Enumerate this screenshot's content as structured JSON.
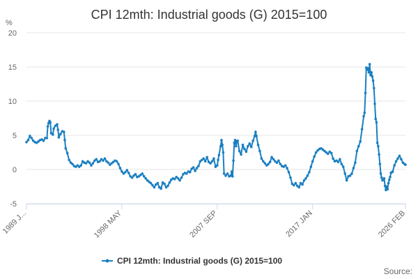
{
  "chart_data": {
    "type": "line",
    "title": "CPI 12mth: Industrial goods (G) 2015=100",
    "ylabel": "%",
    "ylim": [
      -5,
      20
    ],
    "yticks": [
      -5,
      0,
      5,
      10,
      15,
      20
    ],
    "xlim": [
      "1989-01",
      "2026-02"
    ],
    "xtick_labels": [
      "1989 J...",
      "1998 MAY",
      "2007 SEP",
      "2017 JAN",
      "2026 FEB"
    ],
    "xtick_dates": [
      "1989-01",
      "1998-05",
      "2007-09",
      "2017-01",
      "2026-02"
    ],
    "grid": "horizontal",
    "legend_position": "bottom-center",
    "source_label": "Source:",
    "series": [
      {
        "name": "CPI 12mth: Industrial goods (G) 2015=100",
        "color": "#1a7fc1",
        "points": [
          [
            "1989-01",
            4.0
          ],
          [
            "1989-03",
            4.3
          ],
          [
            "1989-05",
            4.9
          ],
          [
            "1989-07",
            4.6
          ],
          [
            "1989-09",
            4.2
          ],
          [
            "1989-11",
            4.0
          ],
          [
            "1990-01",
            3.9
          ],
          [
            "1990-03",
            4.1
          ],
          [
            "1990-05",
            4.3
          ],
          [
            "1990-07",
            4.4
          ],
          [
            "1990-09",
            4.2
          ],
          [
            "1990-11",
            4.6
          ],
          [
            "1991-01",
            4.6
          ],
          [
            "1991-02",
            6.3
          ],
          [
            "1991-03",
            6.8
          ],
          [
            "1991-04",
            7.1
          ],
          [
            "1991-05",
            6.9
          ],
          [
            "1991-06",
            5.3
          ],
          [
            "1991-08",
            5.1
          ],
          [
            "1991-09",
            6.0
          ],
          [
            "1991-11",
            6.4
          ],
          [
            "1992-01",
            6.6
          ],
          [
            "1992-02",
            5.8
          ],
          [
            "1992-03",
            4.7
          ],
          [
            "1992-05",
            5.2
          ],
          [
            "1992-07",
            5.6
          ],
          [
            "1992-09",
            5.5
          ],
          [
            "1992-10",
            4.3
          ],
          [
            "1992-11",
            3.1
          ],
          [
            "1993-01",
            2.4
          ],
          [
            "1993-03",
            1.4
          ],
          [
            "1993-05",
            1.0
          ],
          [
            "1993-07",
            0.8
          ],
          [
            "1993-09",
            0.5
          ],
          [
            "1993-11",
            0.4
          ],
          [
            "1994-01",
            0.6
          ],
          [
            "1994-03",
            0.4
          ],
          [
            "1994-05",
            0.6
          ],
          [
            "1994-07",
            1.2
          ],
          [
            "1994-09",
            1.0
          ],
          [
            "1994-11",
            0.9
          ],
          [
            "1995-01",
            1.2
          ],
          [
            "1995-03",
            1.0
          ],
          [
            "1995-05",
            0.6
          ],
          [
            "1995-07",
            0.9
          ],
          [
            "1995-09",
            1.3
          ],
          [
            "1995-11",
            1.5
          ],
          [
            "1996-01",
            1.1
          ],
          [
            "1996-03",
            1.2
          ],
          [
            "1996-05",
            1.5
          ],
          [
            "1996-07",
            1.3
          ],
          [
            "1996-09",
            1.6
          ],
          [
            "1996-11",
            1.2
          ],
          [
            "1997-01",
            1.0
          ],
          [
            "1997-03",
            0.7
          ],
          [
            "1997-05",
            0.9
          ],
          [
            "1997-07",
            1.1
          ],
          [
            "1997-09",
            1.3
          ],
          [
            "1997-11",
            1.2
          ],
          [
            "1998-01",
            0.8
          ],
          [
            "1998-03",
            0.2
          ],
          [
            "1998-05",
            -0.3
          ],
          [
            "1998-07",
            -0.6
          ],
          [
            "1998-09",
            -0.4
          ],
          [
            "1998-11",
            -0.1
          ],
          [
            "1999-01",
            -0.5
          ],
          [
            "1999-03",
            -1.0
          ],
          [
            "1999-05",
            -1.2
          ],
          [
            "1999-07",
            -0.9
          ],
          [
            "1999-09",
            -0.7
          ],
          [
            "1999-11",
            -1.1
          ],
          [
            "2000-01",
            -1.0
          ],
          [
            "2000-03",
            -0.8
          ],
          [
            "2000-05",
            -0.6
          ],
          [
            "2000-07",
            -1.0
          ],
          [
            "2000-09",
            -1.3
          ],
          [
            "2000-11",
            -1.6
          ],
          [
            "2001-01",
            -1.8
          ],
          [
            "2001-03",
            -2.0
          ],
          [
            "2001-05",
            -2.3
          ],
          [
            "2001-07",
            -2.6
          ],
          [
            "2001-09",
            -2.2
          ],
          [
            "2001-11",
            -2.0
          ],
          [
            "2002-01",
            -2.6
          ],
          [
            "2002-03",
            -2.8
          ],
          [
            "2002-05",
            -1.9
          ],
          [
            "2002-07",
            -2.1
          ],
          [
            "2002-09",
            -2.6
          ],
          [
            "2002-11",
            -2.4
          ],
          [
            "2003-01",
            -1.9
          ],
          [
            "2003-03",
            -1.5
          ],
          [
            "2003-05",
            -1.3
          ],
          [
            "2003-07",
            -1.4
          ],
          [
            "2003-09",
            -1.1
          ],
          [
            "2003-11",
            -1.3
          ],
          [
            "2004-01",
            -1.6
          ],
          [
            "2004-03",
            -1.2
          ],
          [
            "2004-05",
            -0.7
          ],
          [
            "2004-07",
            -0.5
          ],
          [
            "2004-09",
            -0.6
          ],
          [
            "2004-11",
            -0.3
          ],
          [
            "2005-01",
            -0.4
          ],
          [
            "2005-03",
            0.1
          ],
          [
            "2005-05",
            0.3
          ],
          [
            "2005-07",
            -0.2
          ],
          [
            "2005-09",
            0.2
          ],
          [
            "2005-11",
            0.5
          ],
          [
            "2006-01",
            1.2
          ],
          [
            "2006-03",
            1.4
          ],
          [
            "2006-05",
            1.6
          ],
          [
            "2006-07",
            1.2
          ],
          [
            "2006-09",
            1.8
          ],
          [
            "2006-11",
            1.1
          ],
          [
            "2007-01",
            0.9
          ],
          [
            "2007-03",
            1.2
          ],
          [
            "2007-05",
            1.6
          ],
          [
            "2007-07",
            0.4
          ],
          [
            "2007-09",
            0.6
          ],
          [
            "2007-10",
            1.4
          ],
          [
            "2007-11",
            2.1
          ],
          [
            "2008-01",
            3.4
          ],
          [
            "2008-02",
            4.3
          ],
          [
            "2008-03",
            3.6
          ],
          [
            "2008-04",
            2.5
          ],
          [
            "2008-05",
            -0.6
          ],
          [
            "2008-07",
            -0.9
          ],
          [
            "2008-09",
            -0.6
          ],
          [
            "2008-11",
            -1.0
          ],
          [
            "2009-01",
            -0.9
          ],
          [
            "2009-02",
            -0.3
          ],
          [
            "2009-03",
            -1.0
          ],
          [
            "2009-04",
            1.3
          ],
          [
            "2009-05",
            3.9
          ],
          [
            "2009-06",
            4.3
          ],
          [
            "2009-07",
            3.4
          ],
          [
            "2009-08",
            4.1
          ],
          [
            "2009-09",
            4.2
          ],
          [
            "2009-11",
            2.7
          ],
          [
            "2010-01",
            2.2
          ],
          [
            "2010-03",
            3.6
          ],
          [
            "2010-05",
            3.0
          ],
          [
            "2010-07",
            2.6
          ],
          [
            "2010-09",
            3.4
          ],
          [
            "2010-11",
            3.8
          ],
          [
            "2011-01",
            3.3
          ],
          [
            "2011-03",
            4.2
          ],
          [
            "2011-05",
            4.9
          ],
          [
            "2011-06",
            5.5
          ],
          [
            "2011-07",
            4.9
          ],
          [
            "2011-09",
            3.6
          ],
          [
            "2011-11",
            2.7
          ],
          [
            "2012-01",
            1.6
          ],
          [
            "2012-03",
            1.2
          ],
          [
            "2012-05",
            0.9
          ],
          [
            "2012-07",
            0.6
          ],
          [
            "2012-09",
            0.8
          ],
          [
            "2012-11",
            1.1
          ],
          [
            "2013-01",
            1.8
          ],
          [
            "2013-03",
            1.5
          ],
          [
            "2013-05",
            1.2
          ],
          [
            "2013-07",
            1.0
          ],
          [
            "2013-09",
            1.3
          ],
          [
            "2013-11",
            0.8
          ],
          [
            "2014-01",
            0.5
          ],
          [
            "2014-03",
            0.4
          ],
          [
            "2014-05",
            0.6
          ],
          [
            "2014-07",
            0.2
          ],
          [
            "2014-09",
            -0.4
          ],
          [
            "2014-11",
            -1.2
          ],
          [
            "2015-01",
            -2.1
          ],
          [
            "2015-03",
            -2.3
          ],
          [
            "2015-05",
            -2.0
          ],
          [
            "2015-07",
            -2.4
          ],
          [
            "2015-09",
            -2.6
          ],
          [
            "2015-11",
            -2.0
          ],
          [
            "2016-01",
            -2.2
          ],
          [
            "2016-03",
            -1.6
          ],
          [
            "2016-05",
            -1.3
          ],
          [
            "2016-07",
            -0.9
          ],
          [
            "2016-09",
            -0.4
          ],
          [
            "2016-11",
            0.4
          ],
          [
            "2017-01",
            1.2
          ],
          [
            "2017-03",
            1.9
          ],
          [
            "2017-05",
            2.5
          ],
          [
            "2017-07",
            2.8
          ],
          [
            "2017-09",
            3.0
          ],
          [
            "2017-11",
            3.1
          ],
          [
            "2018-01",
            2.9
          ],
          [
            "2018-03",
            2.7
          ],
          [
            "2018-05",
            2.5
          ],
          [
            "2018-07",
            2.3
          ],
          [
            "2018-09",
            2.6
          ],
          [
            "2018-11",
            2.4
          ],
          [
            "2019-01",
            1.6
          ],
          [
            "2019-03",
            1.2
          ],
          [
            "2019-05",
            1.3
          ],
          [
            "2019-07",
            1.1
          ],
          [
            "2019-09",
            1.5
          ],
          [
            "2019-11",
            0.8
          ],
          [
            "2020-01",
            0.4
          ],
          [
            "2020-03",
            -0.6
          ],
          [
            "2020-05",
            -1.6
          ],
          [
            "2020-07",
            -1.0
          ],
          [
            "2020-09",
            -0.9
          ],
          [
            "2020-11",
            -0.6
          ],
          [
            "2021-01",
            0.2
          ],
          [
            "2021-03",
            1.0
          ],
          [
            "2021-05",
            2.7
          ],
          [
            "2021-07",
            3.4
          ],
          [
            "2021-09",
            4.1
          ],
          [
            "2021-11",
            5.9
          ],
          [
            "2022-01",
            7.8
          ],
          [
            "2022-02",
            8.3
          ],
          [
            "2022-03",
            11.2
          ],
          [
            "2022-04",
            14.9
          ],
          [
            "2022-05",
            14.6
          ],
          [
            "2022-06",
            14.8
          ],
          [
            "2022-07",
            14.2
          ],
          [
            "2022-08",
            15.4
          ],
          [
            "2022-09",
            13.8
          ],
          [
            "2022-10",
            14.2
          ],
          [
            "2022-11",
            13.6
          ],
          [
            "2022-12",
            13.0
          ],
          [
            "2023-01",
            11.9
          ],
          [
            "2023-02",
            9.6
          ],
          [
            "2023-03",
            7.4
          ],
          [
            "2023-04",
            6.9
          ],
          [
            "2023-05",
            3.9
          ],
          [
            "2023-06",
            3.4
          ],
          [
            "2023-07",
            2.2
          ],
          [
            "2023-08",
            0.8
          ],
          [
            "2023-09",
            -0.6
          ],
          [
            "2023-10",
            -1.2
          ],
          [
            "2023-11",
            -1.6
          ],
          [
            "2024-01",
            -1.3
          ],
          [
            "2024-02",
            -2.4
          ],
          [
            "2024-03",
            -3.0
          ],
          [
            "2024-04",
            -2.5
          ],
          [
            "2024-05",
            -2.9
          ],
          [
            "2024-06",
            -2.0
          ],
          [
            "2024-07",
            -1.5
          ],
          [
            "2024-08",
            -1.1
          ],
          [
            "2024-09",
            -0.5
          ],
          [
            "2024-10",
            -0.4
          ],
          [
            "2024-11",
            -0.3
          ],
          [
            "2025-01",
            0.6
          ],
          [
            "2025-03",
            1.2
          ],
          [
            "2025-05",
            1.6
          ],
          [
            "2025-07",
            2.0
          ],
          [
            "2025-09",
            1.5
          ],
          [
            "2025-11",
            1.0
          ],
          [
            "2026-01",
            0.8
          ],
          [
            "2026-02",
            0.7
          ]
        ]
      }
    ]
  }
}
